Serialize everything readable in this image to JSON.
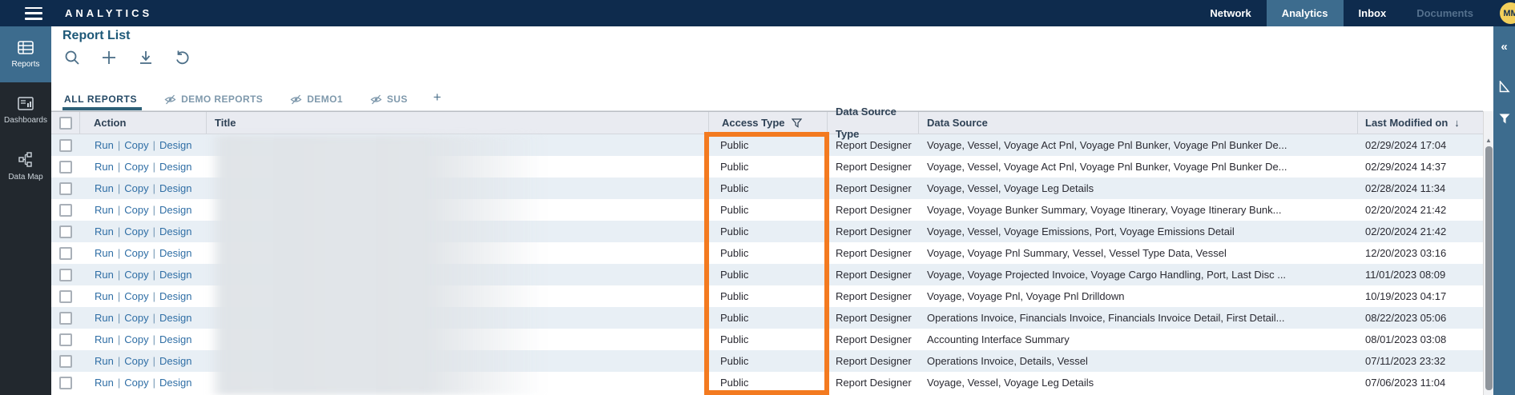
{
  "app": {
    "brand": "ANALYTICS"
  },
  "topnav": {
    "items": [
      {
        "label": "Network",
        "state": "normal"
      },
      {
        "label": "Analytics",
        "state": "active"
      },
      {
        "label": "Inbox",
        "state": "normal"
      },
      {
        "label": "Documents",
        "state": "disabled"
      }
    ],
    "avatar_initials": "MM"
  },
  "sidebar": {
    "items": [
      {
        "label": "Reports",
        "icon": "reports-table-icon",
        "active": true
      },
      {
        "label": "Dashboards",
        "icon": "dashboard-icon",
        "active": false
      },
      {
        "label": "Data Map",
        "icon": "data-map-icon",
        "active": false
      }
    ]
  },
  "page": {
    "title": "Report List",
    "toolbar_icons": [
      "search-icon",
      "add-icon",
      "download-icon",
      "undo-icon"
    ]
  },
  "tabs": [
    {
      "label": "ALL REPORTS",
      "active": true,
      "hidden_icon": false
    },
    {
      "label": "DEMO REPORTS",
      "active": false,
      "hidden_icon": true
    },
    {
      "label": "DEMO1",
      "active": false,
      "hidden_icon": true
    },
    {
      "label": "SUS",
      "active": false,
      "hidden_icon": true
    },
    {
      "label": "+",
      "active": false,
      "hidden_icon": false
    }
  ],
  "table": {
    "columns": [
      "Action",
      "Title",
      "Access Type",
      "Data Source Type",
      "Data Source",
      "Last Modified on"
    ],
    "access_type_filter_icon": "filter-funnel-icon",
    "last_modified_sort_icon": "sort-descending-arrow",
    "sort_arrow_glyph": "↓",
    "action_labels": [
      "Run",
      "Copy",
      "Design"
    ],
    "rows": [
      {
        "access": "Public",
        "dst": "Report Designer",
        "ds": "Voyage, Vessel, Voyage Act Pnl, Voyage Pnl Bunker, Voyage Pnl Bunker De...",
        "modified": "02/29/2024 17:04"
      },
      {
        "access": "Public",
        "dst": "Report Designer",
        "ds": "Voyage, Vessel, Voyage Act Pnl, Voyage Pnl Bunker, Voyage Pnl Bunker De...",
        "modified": "02/29/2024 14:37"
      },
      {
        "access": "Public",
        "dst": "Report Designer",
        "ds": "Voyage, Vessel, Voyage Leg Details",
        "modified": "02/28/2024 11:34"
      },
      {
        "access": "Public",
        "dst": "Report Designer",
        "ds": "Voyage, Voyage Bunker Summary, Voyage Itinerary, Voyage Itinerary Bunk...",
        "modified": "02/20/2024 21:42"
      },
      {
        "access": "Public",
        "dst": "Report Designer",
        "ds": "Voyage, Vessel, Voyage Emissions, Port, Voyage Emissions Detail",
        "modified": "02/20/2024 21:42"
      },
      {
        "access": "Public",
        "dst": "Report Designer",
        "ds": "Voyage, Voyage Pnl Summary, Vessel, Vessel Type Data, Vessel",
        "modified": "12/20/2023 03:16"
      },
      {
        "access": "Public",
        "dst": "Report Designer",
        "ds": "Voyage, Voyage Projected Invoice, Voyage Cargo Handling, Port, Last Disc ...",
        "modified": "11/01/2023 08:09"
      },
      {
        "access": "Public",
        "dst": "Report Designer",
        "ds": "Voyage, Voyage Pnl, Voyage Pnl Drilldown",
        "modified": "10/19/2023 04:17"
      },
      {
        "access": "Public",
        "dst": "Report Designer",
        "ds": "Operations Invoice, Financials Invoice, Financials Invoice Detail, First Detail...",
        "modified": "08/22/2023 05:06"
      },
      {
        "access": "Public",
        "dst": "Report Designer",
        "ds": "Accounting Interface Summary",
        "modified": "08/01/2023 03:08"
      },
      {
        "access": "Public",
        "dst": "Report Designer",
        "ds": "Operations Invoice, Details, Vessel",
        "modified": "07/11/2023 23:32"
      },
      {
        "access": "Public",
        "dst": "Report Designer",
        "ds": "Voyage, Vessel, Voyage Leg Details",
        "modified": "07/06/2023 11:04"
      }
    ]
  },
  "highlight": {
    "column": "Access Type",
    "color": "#f37a20"
  },
  "right_panel": {
    "collapse_glyph": "«",
    "icons": [
      "collapse-panel-icon",
      "triangle-ruler-icon",
      "filter-funnel-icon"
    ]
  }
}
